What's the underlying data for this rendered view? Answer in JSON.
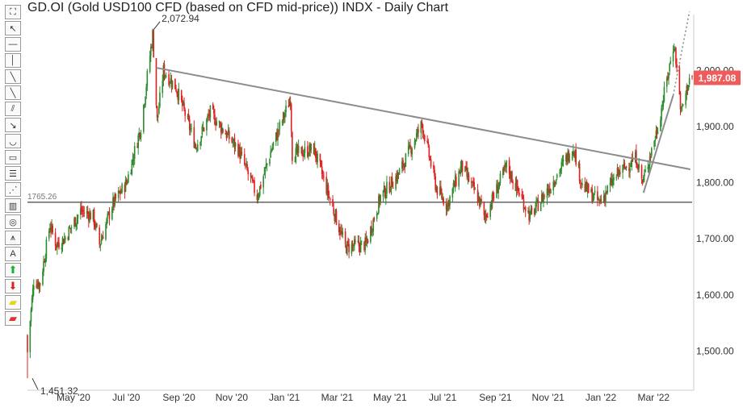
{
  "title": "GD.OI (Gold USD100 CFD (based on CFD mid-price)) INDX - Daily Chart",
  "toolbar": {
    "tools": [
      {
        "name": "fullscreen-tool",
        "icon": "fullscreen-icon",
        "glyph": "⛶"
      },
      {
        "name": "pointer-tool",
        "icon": "cursor-arrow-icon",
        "glyph": "↖"
      },
      {
        "name": "horizontal-line-tool",
        "icon": "horizontal-line-icon",
        "glyph": "—"
      },
      {
        "name": "vertical-line-tool",
        "icon": "vertical-line-icon",
        "glyph": "│"
      },
      {
        "name": "trend-line-tool",
        "icon": "trend-line-icon",
        "glyph": "╲"
      },
      {
        "name": "ray-tool",
        "icon": "ray-icon",
        "glyph": "╲"
      },
      {
        "name": "parallel-channel-tool",
        "icon": "parallel-channel-icon",
        "glyph": "⫽"
      },
      {
        "name": "arrow-line-tool",
        "icon": "arrow-line-icon",
        "glyph": "↘"
      },
      {
        "name": "arc-tool",
        "icon": "arc-icon",
        "glyph": "◡"
      },
      {
        "name": "rectangle-tool",
        "icon": "rectangle-icon",
        "glyph": "▭"
      },
      {
        "name": "fibonacci-retracement-tool",
        "icon": "fibonacci-icon",
        "glyph": "☰"
      },
      {
        "name": "fibonacci-fan-tool",
        "icon": "fan-icon",
        "glyph": "⋰"
      },
      {
        "name": "gann-grid-tool",
        "icon": "grid-lines-icon",
        "glyph": "▥"
      },
      {
        "name": "cycle-tool",
        "icon": "concentric-circles-icon",
        "glyph": "◎"
      },
      {
        "name": "andrews-pitchfork-tool",
        "icon": "pitchfork-icon",
        "glyph": "⩚"
      },
      {
        "name": "text-tool",
        "icon": "text-a-icon",
        "glyph": "A"
      },
      {
        "name": "buy-arrow-tool",
        "icon": "green-up-arrow-icon",
        "glyph": "⬆"
      },
      {
        "name": "sell-arrow-tool",
        "icon": "red-down-arrow-icon",
        "glyph": "⬇"
      },
      {
        "name": "highlighter-tool",
        "icon": "yellow-highlighter-icon",
        "glyph": "▰"
      },
      {
        "name": "eraser-tool",
        "icon": "red-eraser-icon",
        "glyph": "▰"
      }
    ]
  },
  "colors": {
    "up_candle": "#2e8b2e",
    "down_candle": "#e02020",
    "trendline": "#8c8c8c",
    "support_line": "#555555",
    "badge": "#f05a5a",
    "axis_line": "#cccccc"
  },
  "chart_data": {
    "type": "candlestick",
    "x_ticks": [
      "May '20",
      "Jul '20",
      "Sep '20",
      "Nov '20",
      "Jan '21",
      "Mar '21",
      "May '21",
      "Jul '21",
      "Sep '21",
      "Nov '21",
      "Jan '22",
      "Mar '22"
    ],
    "y_ticks": [
      "2,000.00",
      "1,900.00",
      "1,800.00",
      "1,700.00",
      "1,600.00",
      "1,500.00"
    ],
    "y_tick_values": [
      2000,
      1900,
      1800,
      1700,
      1600,
      1500
    ],
    "ylim": [
      1430,
      2100
    ],
    "x_range": [
      "2020-03-20",
      "2022-03-28"
    ],
    "last_price": 1987.08,
    "last_price_label": "1,987.08",
    "annotations": {
      "high": {
        "date": "2020-08-07",
        "value": 2072.94,
        "label": "2,072.94"
      },
      "low": {
        "date": "2020-03-20",
        "value": 1451.32,
        "label": "1,451.32"
      },
      "support": {
        "value": 1765.26,
        "label": "1765.26"
      }
    },
    "trendlines": [
      {
        "name": "descending-resistance",
        "from": {
          "date": "2020-08-10",
          "value": 2005
        },
        "to": {
          "date": "2022-03-26",
          "value": 1824
        }
      },
      {
        "name": "rising-support",
        "from": {
          "date": "2022-02-02",
          "value": 1782
        },
        "to": {
          "date": "2022-03-07",
          "value": 1956
        }
      },
      {
        "name": "projection-dotted",
        "from": {
          "date": "2022-03-07",
          "value": 1956
        },
        "to": {
          "date": "2022-03-25",
          "value": 2105
        }
      }
    ],
    "closes": [
      {
        "date": "2020-03-20",
        "value": 1498
      },
      {
        "date": "2020-03-23",
        "value": 1555
      },
      {
        "date": "2020-03-27",
        "value": 1625
      },
      {
        "date": "2020-04-03",
        "value": 1620
      },
      {
        "date": "2020-04-14",
        "value": 1725
      },
      {
        "date": "2020-04-21",
        "value": 1690
      },
      {
        "date": "2020-04-30",
        "value": 1700
      },
      {
        "date": "2020-05-18",
        "value": 1750
      },
      {
        "date": "2020-06-01",
        "value": 1740
      },
      {
        "date": "2020-06-08",
        "value": 1690
      },
      {
        "date": "2020-06-22",
        "value": 1760
      },
      {
        "date": "2020-07-08",
        "value": 1800
      },
      {
        "date": "2020-07-24",
        "value": 1900
      },
      {
        "date": "2020-08-06",
        "value": 2065
      },
      {
        "date": "2020-08-11",
        "value": 1910
      },
      {
        "date": "2020-08-18",
        "value": 2000
      },
      {
        "date": "2020-09-01",
        "value": 1970
      },
      {
        "date": "2020-09-23",
        "value": 1865
      },
      {
        "date": "2020-10-09",
        "value": 1925
      },
      {
        "date": "2020-10-30",
        "value": 1880
      },
      {
        "date": "2020-11-09",
        "value": 1860
      },
      {
        "date": "2020-11-30",
        "value": 1775
      },
      {
        "date": "2020-12-16",
        "value": 1860
      },
      {
        "date": "2021-01-06",
        "value": 1950
      },
      {
        "date": "2021-01-08",
        "value": 1850
      },
      {
        "date": "2021-02-01",
        "value": 1860
      },
      {
        "date": "2021-02-26",
        "value": 1735
      },
      {
        "date": "2021-03-08",
        "value": 1685
      },
      {
        "date": "2021-03-31",
        "value": 1690
      },
      {
        "date": "2021-04-16",
        "value": 1775
      },
      {
        "date": "2021-05-06",
        "value": 1815
      },
      {
        "date": "2021-06-01",
        "value": 1905
      },
      {
        "date": "2021-06-17",
        "value": 1790
      },
      {
        "date": "2021-06-29",
        "value": 1760
      },
      {
        "date": "2021-07-15",
        "value": 1830
      },
      {
        "date": "2021-08-06",
        "value": 1760
      },
      {
        "date": "2021-08-09",
        "value": 1735
      },
      {
        "date": "2021-09-03",
        "value": 1830
      },
      {
        "date": "2021-09-29",
        "value": 1740
      },
      {
        "date": "2021-10-22",
        "value": 1795
      },
      {
        "date": "2021-11-16",
        "value": 1865
      },
      {
        "date": "2021-11-26",
        "value": 1795
      },
      {
        "date": "2021-12-15",
        "value": 1765
      },
      {
        "date": "2022-01-04",
        "value": 1815
      },
      {
        "date": "2022-01-25",
        "value": 1845
      },
      {
        "date": "2022-02-01",
        "value": 1800
      },
      {
        "date": "2022-02-18",
        "value": 1900
      },
      {
        "date": "2022-03-08",
        "value": 2050
      },
      {
        "date": "2022-03-16",
        "value": 1925
      },
      {
        "date": "2022-03-25",
        "value": 1987
      }
    ]
  }
}
